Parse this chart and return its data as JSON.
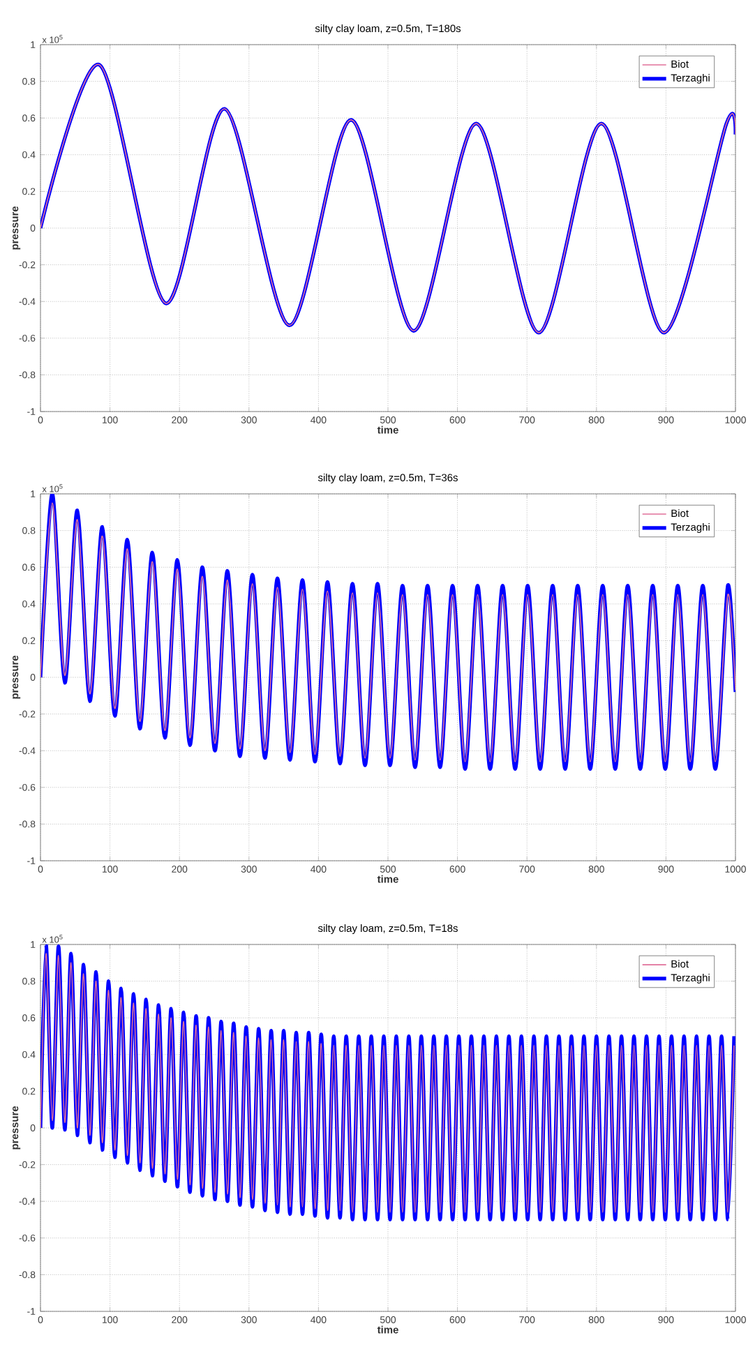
{
  "chart_data": [
    {
      "type": "line",
      "title": "silty clay loam, z=0.5m, T=180s",
      "xlabel": "time",
      "ylabel": "pressure",
      "annotations": [
        "x 10$^{5}$"
      ],
      "x": [
        0,
        85,
        180,
        265,
        358,
        447,
        537,
        627,
        717,
        807,
        897,
        987,
        1000
      ],
      "series": [
        {
          "name": "Biot",
          "color": "#e0709a",
          "values": [
            0,
            0.89,
            -0.41,
            0.65,
            -0.53,
            0.59,
            -0.56,
            0.57,
            -0.57,
            0.57,
            -0.57,
            0.57,
            0.51
          ]
        },
        {
          "name": "Terzaghi",
          "color": "#0000ff",
          "values": [
            0,
            0.89,
            -0.41,
            0.65,
            -0.53,
            0.59,
            -0.56,
            0.57,
            -0.57,
            0.57,
            -0.57,
            0.57,
            0.51
          ]
        }
      ],
      "xlim": [
        0,
        1000
      ],
      "xticks": [
        0,
        100,
        200,
        300,
        400,
        500,
        600,
        700,
        800,
        900,
        1000
      ],
      "ylim": [
        -1,
        1
      ],
      "yticks": [
        -1,
        -0.8,
        -0.6,
        -0.4,
        -0.2,
        0,
        0.2,
        0.4,
        0.6,
        0.8,
        1
      ],
      "grid": true,
      "legend": "top right",
      "line_style": "solid"
    },
    {
      "type": "line",
      "title": "silty clay loam, z=0.5m, T=36s",
      "xlabel": "time",
      "ylabel": "pressure",
      "annotations": [
        "x 10$^{5}$"
      ],
      "x": [
        0,
        17,
        35,
        53,
        71,
        89,
        107,
        125,
        143,
        161,
        179,
        197,
        215,
        233,
        251,
        269,
        287,
        305,
        323,
        341,
        359,
        377,
        395,
        413,
        431,
        449,
        467,
        485,
        503,
        521,
        539,
        557,
        575,
        593,
        611,
        629,
        647,
        665,
        683,
        701,
        719,
        737,
        755,
        773,
        791,
        809,
        827,
        845,
        863,
        881,
        899,
        917,
        935,
        953,
        971,
        989,
        1000
      ],
      "series": [
        {
          "name": "Biot",
          "color": "#e0709a",
          "values": [
            0,
            0.95,
            0.01,
            0.86,
            -0.09,
            0.77,
            -0.17,
            0.7,
            -0.24,
            0.63,
            -0.29,
            0.59,
            -0.33,
            0.55,
            -0.36,
            0.53,
            -0.39,
            0.51,
            -0.4,
            0.49,
            -0.41,
            0.48,
            -0.42,
            0.47,
            -0.43,
            0.46,
            -0.44,
            0.46,
            -0.44,
            0.45,
            -0.45,
            0.45,
            -0.45,
            0.45,
            -0.46,
            0.45,
            -0.46,
            0.45,
            -0.46,
            0.45,
            -0.46,
            0.45,
            -0.46,
            0.45,
            -0.46,
            0.45,
            -0.46,
            0.45,
            -0.46,
            0.45,
            -0.46,
            0.45,
            -0.46,
            0.45,
            -0.46,
            0.45,
            -0.07
          ]
        },
        {
          "name": "Terzaghi",
          "color": "#0000ff",
          "values": [
            0,
            1.0,
            -0.03,
            0.91,
            -0.13,
            0.82,
            -0.21,
            0.75,
            -0.28,
            0.68,
            -0.33,
            0.64,
            -0.37,
            0.6,
            -0.4,
            0.58,
            -0.43,
            0.56,
            -0.44,
            0.54,
            -0.45,
            0.53,
            -0.46,
            0.52,
            -0.47,
            0.51,
            -0.48,
            0.51,
            -0.48,
            0.5,
            -0.49,
            0.5,
            -0.49,
            0.5,
            -0.5,
            0.5,
            -0.5,
            0.5,
            -0.5,
            0.5,
            -0.5,
            0.5,
            -0.5,
            0.5,
            -0.5,
            0.5,
            -0.5,
            0.5,
            -0.5,
            0.5,
            -0.5,
            0.5,
            -0.5,
            0.5,
            -0.5,
            0.5,
            -0.08
          ]
        }
      ],
      "xlim": [
        0,
        1000
      ],
      "xticks": [
        0,
        100,
        200,
        300,
        400,
        500,
        600,
        700,
        800,
        900,
        1000
      ],
      "ylim": [
        -1,
        1
      ],
      "yticks": [
        -1,
        -0.8,
        -0.6,
        -0.4,
        -0.2,
        0,
        0.2,
        0.4,
        0.6,
        0.8,
        1
      ],
      "grid": true,
      "legend": "top right",
      "line_style": "solid"
    },
    {
      "type": "line",
      "title": "silty clay loam, z=0.5m, T=18s",
      "xlabel": "time",
      "ylabel": "pressure",
      "annotations": [
        "x 10$^{5}$"
      ],
      "x": [
        0,
        8,
        17,
        26,
        35,
        44,
        53,
        62,
        71,
        80,
        89,
        98,
        107,
        116,
        125,
        134,
        143,
        152,
        161,
        170,
        179,
        188,
        197,
        206,
        215,
        224,
        233,
        242,
        251,
        260,
        269,
        278,
        287,
        296,
        305,
        314,
        323,
        332,
        341,
        350,
        359,
        368,
        377,
        386,
        395,
        404,
        413,
        422,
        431,
        440,
        449,
        458,
        467,
        476,
        485,
        494,
        503,
        512,
        521,
        530,
        539,
        548,
        557,
        566,
        575,
        584,
        593,
        602,
        611,
        620,
        629,
        638,
        647,
        656,
        665,
        674,
        683,
        692,
        701,
        710,
        719,
        728,
        737,
        746,
        755,
        764,
        773,
        782,
        791,
        800,
        809,
        818,
        827,
        836,
        845,
        854,
        863,
        872,
        881,
        890,
        899,
        908,
        917,
        926,
        935,
        944,
        953,
        962,
        971,
        980,
        989,
        998
      ],
      "series": [
        {
          "name": "Biot",
          "color": "#e0709a",
          "values": [
            0,
            0.95,
            0.04,
            0.94,
            0.03,
            0.9,
            0.0,
            0.84,
            -0.04,
            0.8,
            -0.08,
            0.75,
            -0.12,
            0.71,
            -0.15,
            0.68,
            -0.19,
            0.65,
            -0.22,
            0.62,
            -0.25,
            0.6,
            -0.28,
            0.58,
            -0.31,
            0.56,
            -0.33,
            0.55,
            -0.35,
            0.53,
            -0.36,
            0.52,
            -0.38,
            0.5,
            -0.39,
            0.49,
            -0.41,
            0.48,
            -0.42,
            0.48,
            -0.43,
            0.47,
            -0.43,
            0.47,
            -0.44,
            0.46,
            -0.45,
            0.45,
            -0.45,
            0.45,
            -0.46,
            0.45,
            -0.46,
            0.45,
            -0.46,
            0.45,
            -0.46,
            0.45,
            -0.46,
            0.45,
            -0.46,
            0.45,
            -0.46,
            0.45,
            -0.46,
            0.45,
            -0.46,
            0.45,
            -0.46,
            0.45,
            -0.46,
            0.45,
            -0.46,
            0.45,
            -0.46,
            0.45,
            -0.46,
            0.45,
            -0.46,
            0.45,
            -0.46,
            0.45,
            -0.46,
            0.45,
            -0.46,
            0.45,
            -0.46,
            0.45,
            -0.46,
            0.45,
            -0.46,
            0.45,
            -0.46,
            0.45,
            -0.46,
            0.45,
            -0.46,
            0.45,
            -0.46,
            0.45,
            -0.46,
            0.45,
            -0.46,
            0.45,
            -0.46,
            0.45,
            -0.46,
            0.45,
            -0.46,
            0.45,
            -0.46,
            0.45
          ]
        },
        {
          "name": "Terzaghi",
          "color": "#0000ff",
          "values": [
            0,
            1.0,
            0,
            0.99,
            -0.01,
            0.95,
            -0.04,
            0.89,
            -0.08,
            0.85,
            -0.12,
            0.8,
            -0.16,
            0.76,
            -0.19,
            0.73,
            -0.23,
            0.7,
            -0.26,
            0.67,
            -0.29,
            0.65,
            -0.32,
            0.63,
            -0.35,
            0.61,
            -0.37,
            0.6,
            -0.39,
            0.58,
            -0.4,
            0.57,
            -0.42,
            0.55,
            -0.43,
            0.54,
            -0.45,
            0.53,
            -0.46,
            0.53,
            -0.47,
            0.52,
            -0.47,
            0.52,
            -0.48,
            0.51,
            -0.49,
            0.5,
            -0.49,
            0.5,
            -0.5,
            0.5,
            -0.5,
            0.5,
            -0.5,
            0.5,
            -0.5,
            0.5,
            -0.5,
            0.5,
            -0.5,
            0.5,
            -0.5,
            0.5,
            -0.5,
            0.5,
            -0.5,
            0.5,
            -0.5,
            0.5,
            -0.5,
            0.5,
            -0.5,
            0.5,
            -0.5,
            0.5,
            -0.5,
            0.5,
            -0.5,
            0.5,
            -0.5,
            0.5,
            -0.5,
            0.5,
            -0.5,
            0.5,
            -0.5,
            0.5,
            -0.5,
            0.5,
            -0.5,
            0.5,
            -0.5,
            0.5,
            -0.5,
            0.5,
            -0.5,
            0.5,
            -0.5,
            0.5,
            -0.5,
            0.5,
            -0.5,
            0.5,
            -0.5,
            0.5,
            -0.5,
            0.5,
            -0.5,
            0.5,
            -0.5,
            0.5
          ]
        }
      ],
      "xlim": [
        0,
        1000
      ],
      "xticks": [
        0,
        100,
        200,
        300,
        400,
        500,
        600,
        700,
        800,
        900,
        1000
      ],
      "ylim": [
        -1,
        1
      ],
      "yticks": [
        -1,
        -0.8,
        -0.6,
        -0.4,
        -0.2,
        0,
        0.2,
        0.4,
        0.6,
        0.8,
        1
      ],
      "grid": true,
      "legend": "top right",
      "line_style": "solid"
    }
  ]
}
